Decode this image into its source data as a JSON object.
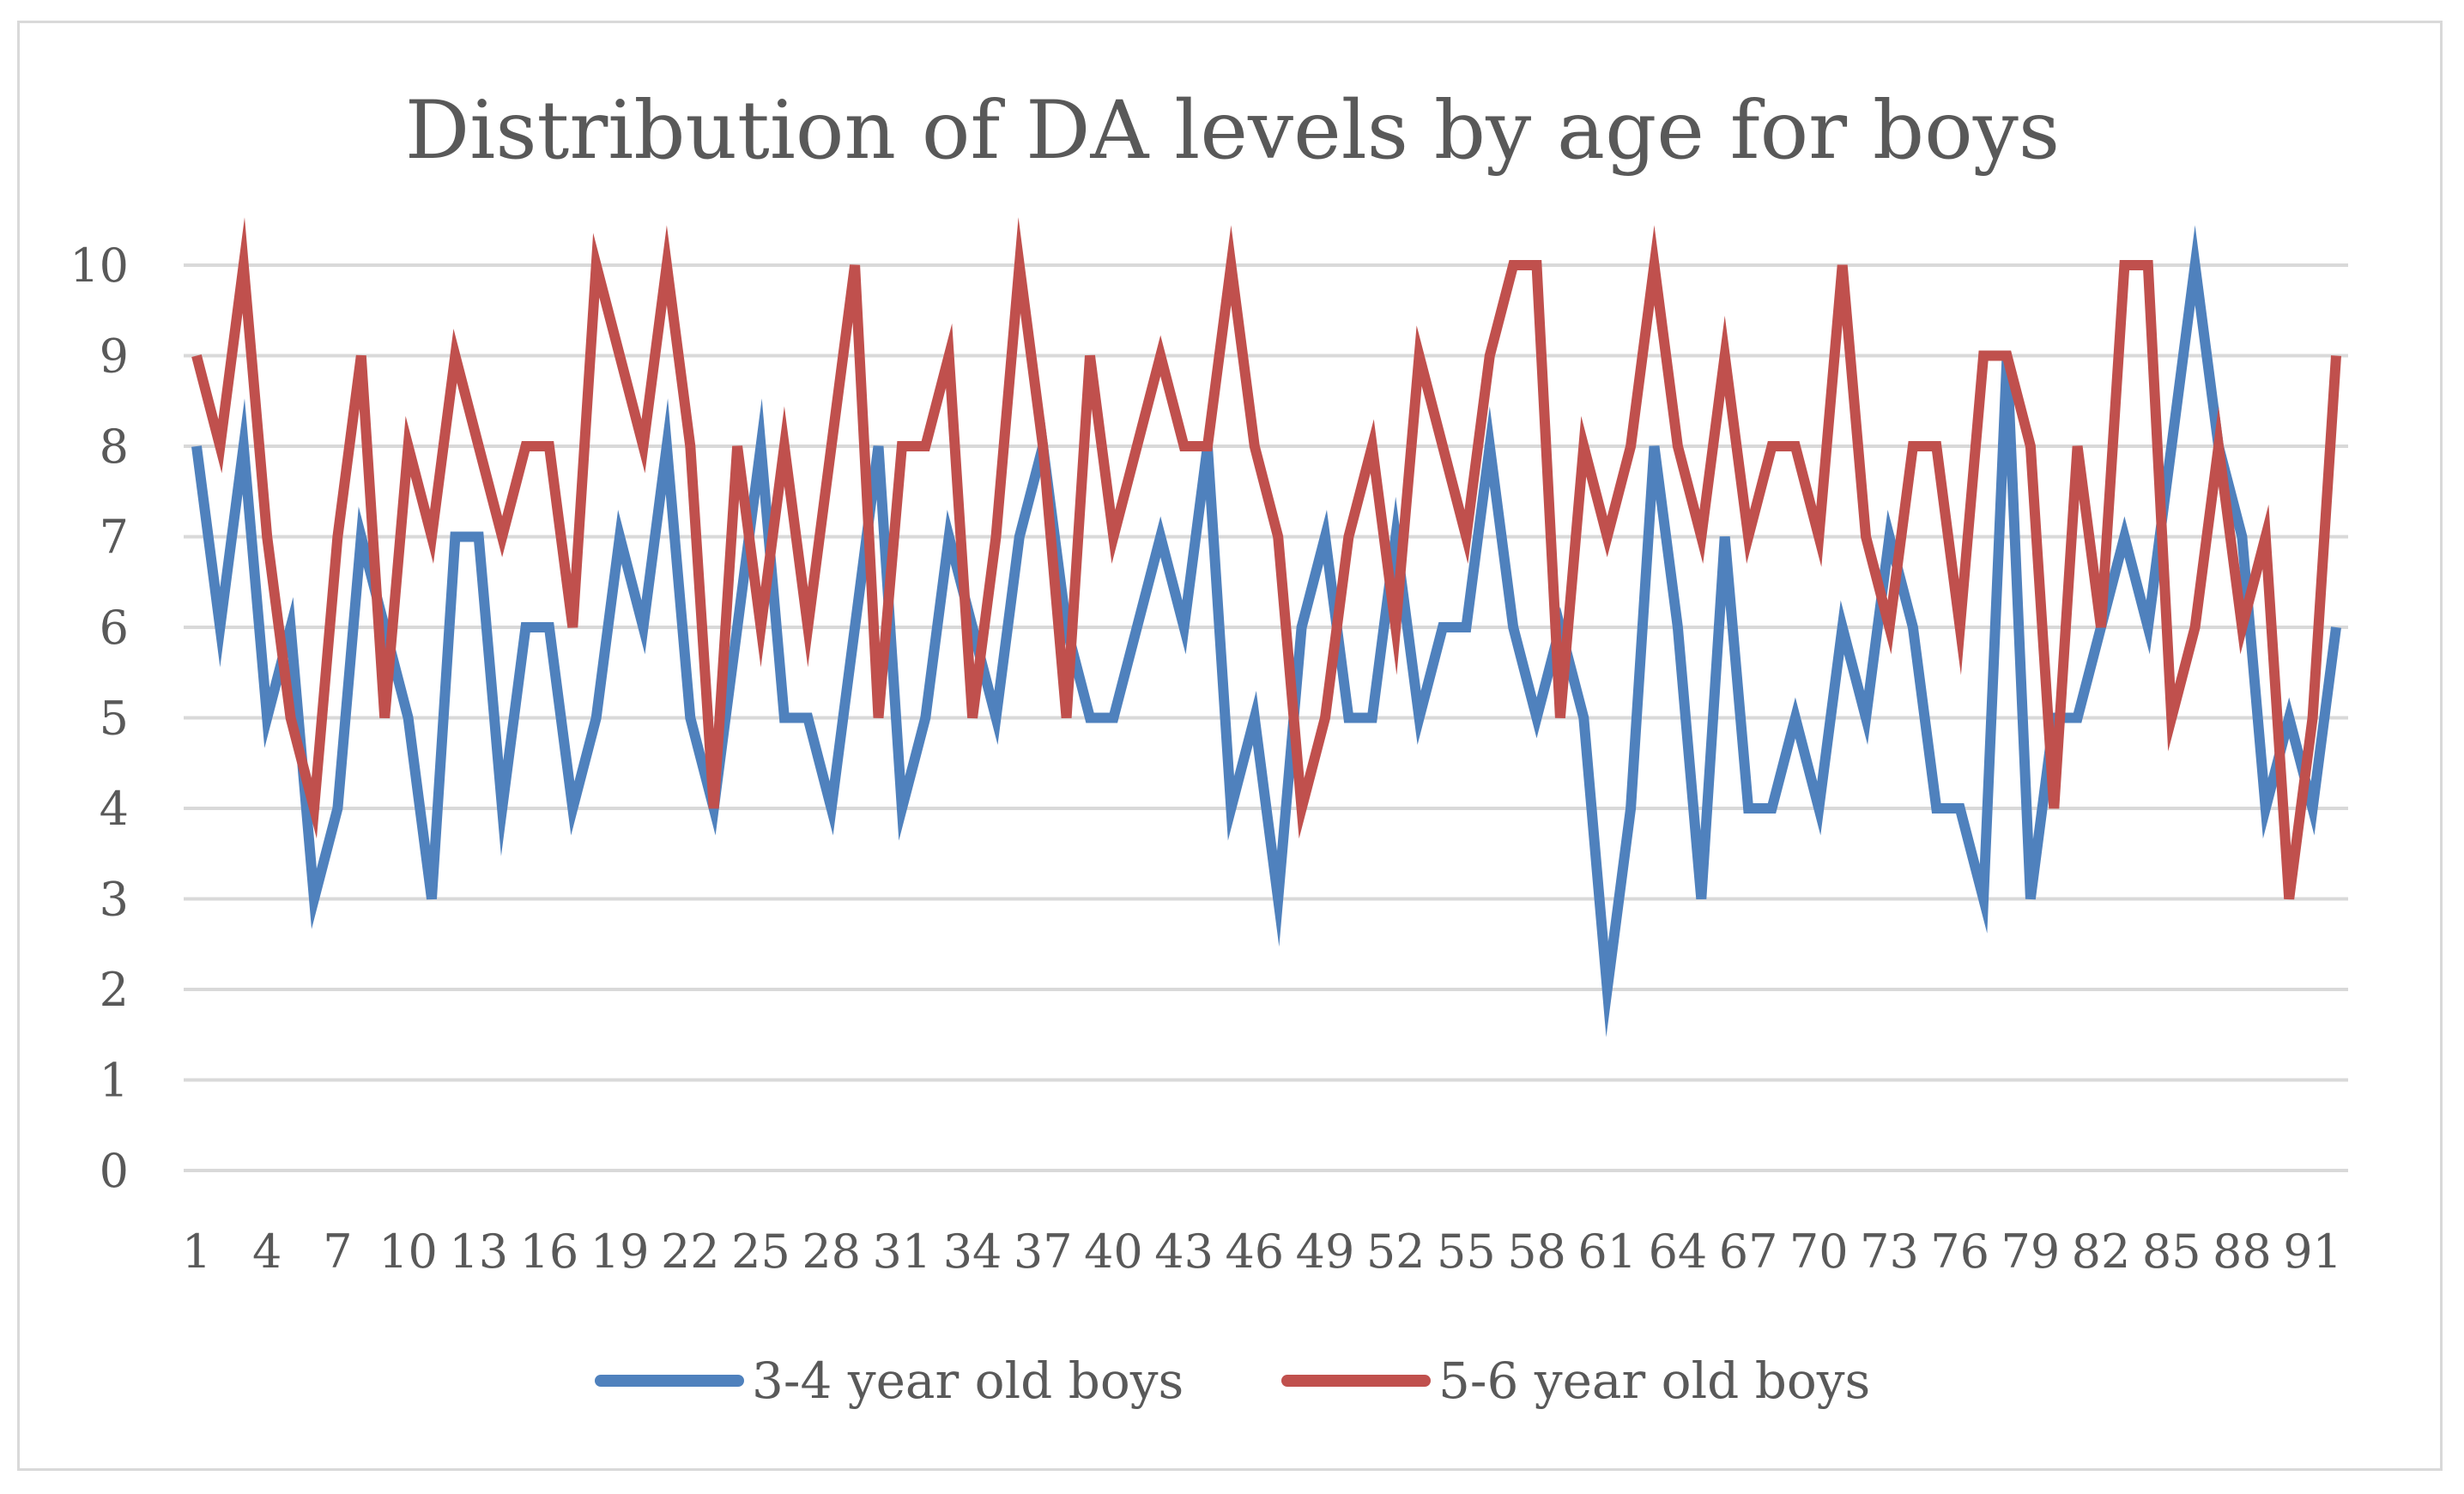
{
  "chart_data": {
    "type": "line",
    "title": "Distribution of DA levels by age for boys",
    "xlabel": "",
    "ylabel": "",
    "ylim": [
      0,
      10
    ],
    "yticks": [
      0,
      1,
      2,
      3,
      4,
      5,
      6,
      7,
      8,
      9,
      10
    ],
    "x": [
      1,
      2,
      3,
      4,
      5,
      6,
      7,
      8,
      9,
      10,
      11,
      12,
      13,
      14,
      15,
      16,
      17,
      18,
      19,
      20,
      21,
      22,
      23,
      24,
      25,
      26,
      27,
      28,
      29,
      30,
      31,
      32,
      33,
      34,
      35,
      36,
      37,
      38,
      39,
      40,
      41,
      42,
      43,
      44,
      45,
      46,
      47,
      48,
      49,
      50,
      51,
      52,
      53,
      54,
      55,
      56,
      57,
      58,
      59,
      60,
      61,
      62,
      63,
      64,
      65,
      66,
      67,
      68,
      69,
      70,
      71,
      72,
      73,
      74,
      75,
      76,
      77,
      78,
      79,
      80,
      81,
      82,
      83,
      84,
      85,
      86,
      87,
      88,
      89,
      90,
      91,
      92
    ],
    "xtick_labels": [
      "1",
      "4",
      "7",
      "10",
      "13",
      "16",
      "19",
      "22",
      "25",
      "28",
      "31",
      "34",
      "37",
      "40",
      "43",
      "46",
      "49",
      "52",
      "55",
      "58",
      "61",
      "64",
      "67",
      "70",
      "73",
      "76",
      "79",
      "82",
      "85",
      "88",
      "91"
    ],
    "grid": true,
    "legend_position": "bottom",
    "series": [
      {
        "name": "3-4 year old boys",
        "color": "#4f81bd",
        "values": [
          8,
          6,
          8,
          5,
          6,
          3,
          4,
          7,
          6,
          5,
          3,
          7,
          7,
          4,
          6,
          6,
          4,
          5,
          7,
          6,
          8,
          5,
          4,
          6,
          8,
          5,
          5,
          4,
          6,
          8,
          4,
          5,
          7,
          6,
          5,
          7,
          8,
          6,
          5,
          5,
          6,
          7,
          6,
          8,
          4,
          5,
          3,
          6,
          7,
          5,
          5,
          7,
          5,
          6,
          6,
          8,
          6,
          5,
          6,
          5,
          2,
          4,
          8,
          6,
          3,
          7,
          4,
          4,
          5,
          4,
          6,
          5,
          7,
          6,
          4,
          4,
          3,
          9,
          3,
          5,
          5,
          6,
          7,
          6,
          8,
          10,
          8,
          7,
          4,
          5,
          4,
          6
        ]
      },
      {
        "name": "5-6 year old boys",
        "color": "#c0504d",
        "values": [
          9,
          8,
          10,
          7,
          5,
          4,
          7,
          9,
          5,
          8,
          7,
          9,
          8,
          7,
          8,
          8,
          6,
          10,
          9,
          8,
          10,
          8,
          4,
          8,
          6,
          8,
          6,
          8,
          10,
          5,
          8,
          8,
          9,
          5,
          7,
          10,
          8,
          5,
          9,
          7,
          8,
          9,
          8,
          8,
          10,
          8,
          7,
          4,
          5,
          7,
          8,
          6,
          9,
          8,
          7,
          9,
          10,
          10,
          5,
          8,
          7,
          8,
          10,
          8,
          7,
          9,
          7,
          8,
          8,
          7,
          10,
          7,
          6,
          8,
          8,
          6,
          9,
          9,
          8,
          4,
          8,
          6,
          10,
          10,
          5,
          6,
          8,
          6,
          7,
          3,
          5,
          9
        ]
      }
    ]
  }
}
